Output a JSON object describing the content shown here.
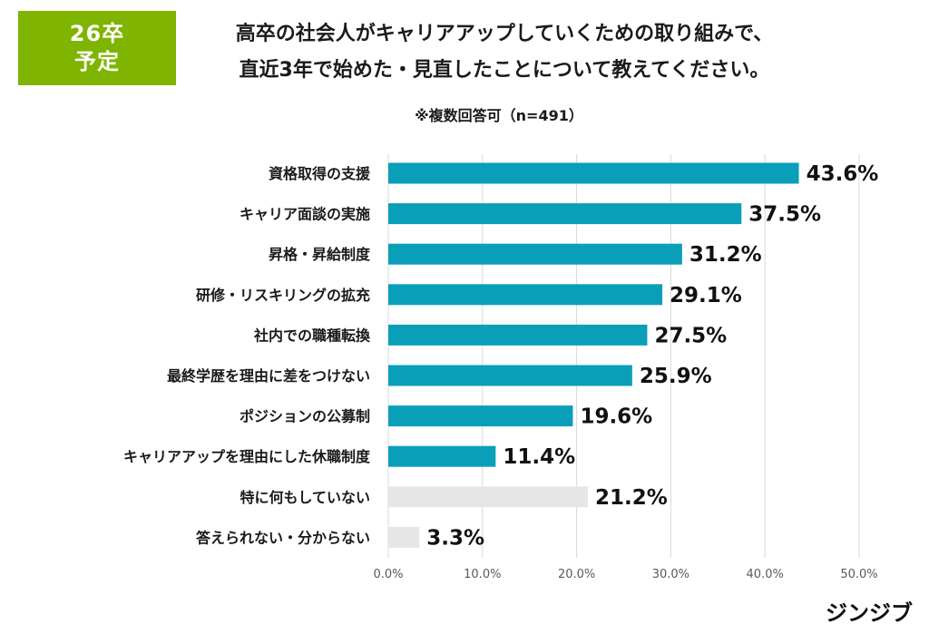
{
  "badge": {
    "line1": "26卒",
    "line2": "予定"
  },
  "header": {
    "title_line1": "高卒の社会人がキャリアアップしていくための取り組みで、",
    "title_line2": "直近3年で始めた・見直したことについて教えてください。",
    "subtitle": "※複数回答可（n=491）"
  },
  "brand": "ジンジブ",
  "chart_data": {
    "type": "bar",
    "orientation": "horizontal",
    "categories": [
      "資格取得の支援",
      "キャリア面談の実施",
      "昇格・昇給制度",
      "研修・リスキリングの拡充",
      "社内での職種転換",
      "最終学歴を理由に差をつけない",
      "ポジションの公募制",
      "キャリアアップを理由にした休職制度",
      "特に何もしていない",
      "答えられない・分からない"
    ],
    "values": [
      43.6,
      37.5,
      31.2,
      29.1,
      27.5,
      25.9,
      19.6,
      11.4,
      21.2,
      3.3
    ],
    "value_labels": [
      "43.6%",
      "37.5%",
      "31.2%",
      "29.1%",
      "27.5%",
      "25.9%",
      "19.6%",
      "11.4%",
      "21.2%",
      "3.3%"
    ],
    "bar_colors": [
      "#0a9fb8",
      "#0a9fb8",
      "#0a9fb8",
      "#0a9fb8",
      "#0a9fb8",
      "#0a9fb8",
      "#0a9fb8",
      "#0a9fb8",
      "#e6e6e6",
      "#e6e6e6"
    ],
    "xlim": [
      0,
      50
    ],
    "xticks": [
      0,
      10,
      20,
      30,
      40,
      50
    ],
    "xtick_labels": [
      "0.0%",
      "10.0%",
      "20.0%",
      "30.0%",
      "40.0%",
      "50.0%"
    ],
    "grid": true
  }
}
